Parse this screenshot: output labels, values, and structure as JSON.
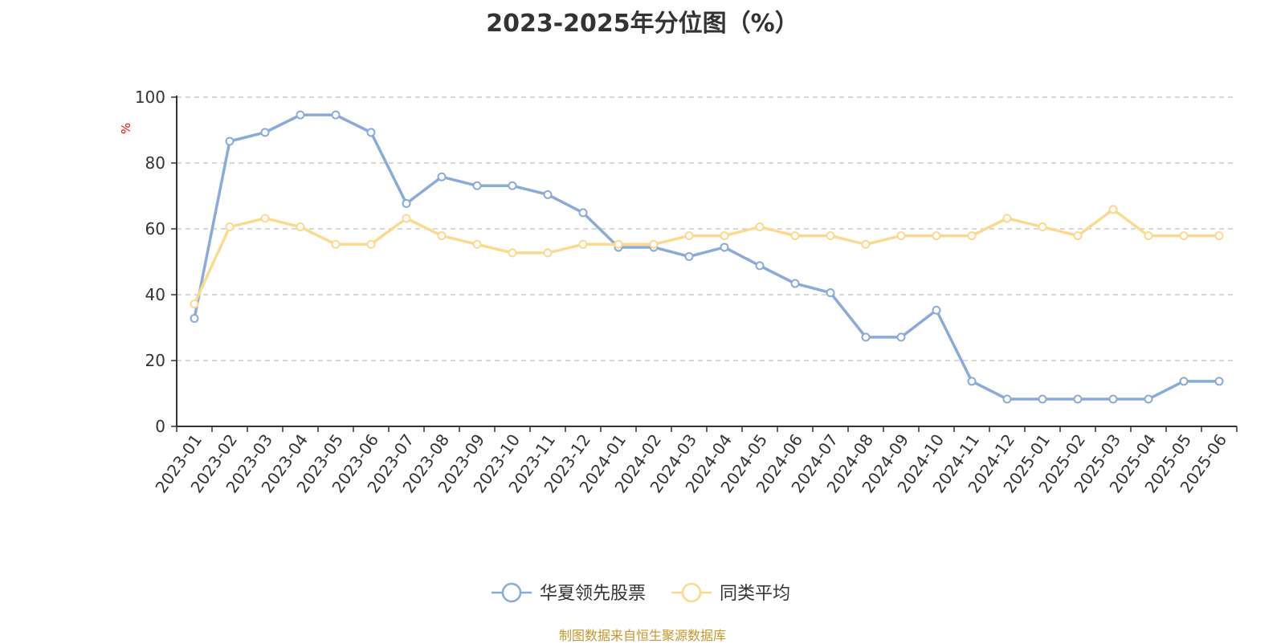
{
  "title": "2023-2025年分位图（%）",
  "source": "制图数据来自恒生聚源数据库",
  "y_unit": "%",
  "colors": {
    "series1": "#8aaadb",
    "series2": "#fbd98f",
    "unit": "#ff0000",
    "grid": "#cccccc",
    "axis": "#333333",
    "source": "#c8962f"
  },
  "chart_data": {
    "type": "line",
    "title": "2023-2025年分位图（%）",
    "xlabel": "",
    "ylabel": "%",
    "ylim": [
      0,
      100
    ],
    "yticks": [
      0,
      20,
      40,
      60,
      80,
      100
    ],
    "grid": "horizontal dashed",
    "legend_position": "bottom-center",
    "categories": [
      "2023-01",
      "2023-02",
      "2023-03",
      "2023-04",
      "2023-05",
      "2023-06",
      "2023-07",
      "2023-08",
      "2023-09",
      "2023-10",
      "2023-11",
      "2023-12",
      "2024-01",
      "2024-02",
      "2024-03",
      "2024-04",
      "2024-05",
      "2024-06",
      "2024-07",
      "2024-08",
      "2024-09",
      "2024-10",
      "2024-11",
      "2024-12",
      "2025-01",
      "2025-02",
      "2025-03",
      "2025-04",
      "2025-05",
      "2025-06"
    ],
    "series": [
      {
        "name": "华夏领先股票",
        "color": "#8aaadb",
        "values": [
          32.8,
          86.6,
          89.3,
          94.6,
          94.6,
          89.3,
          67.7,
          75.8,
          73.1,
          73.1,
          70.4,
          64.9,
          54.4,
          54.4,
          51.6,
          54.4,
          48.8,
          43.4,
          40.6,
          27.1,
          27.1,
          35.3,
          13.7,
          8.3,
          8.3,
          8.3,
          8.3,
          8.3,
          13.7,
          13.7
        ]
      },
      {
        "name": "同类平均",
        "color": "#fbd98f",
        "values": [
          37.2,
          60.6,
          63.2,
          60.6,
          55.3,
          55.3,
          63.2,
          57.9,
          55.3,
          52.7,
          52.7,
          55.3,
          55.3,
          55.3,
          57.9,
          57.9,
          60.6,
          57.9,
          57.9,
          55.3,
          57.9,
          57.9,
          57.9,
          63.2,
          60.6,
          57.9,
          65.9,
          57.9,
          57.9,
          57.9
        ]
      }
    ]
  }
}
